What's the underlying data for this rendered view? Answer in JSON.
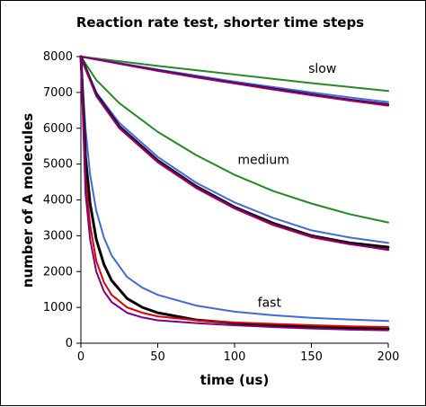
{
  "chart_data": {
    "type": "line",
    "title": "Reaction rate test, shorter time steps",
    "xlabel": "time (us)",
    "ylabel": "number of A molecules",
    "xlim": [
      0,
      200
    ],
    "ylim": [
      0,
      8000
    ],
    "xticks": [
      0,
      50,
      100,
      150,
      200
    ],
    "yticks": [
      0,
      1000,
      2000,
      3000,
      4000,
      5000,
      6000,
      7000,
      8000
    ],
    "grid": false,
    "legend": "none",
    "annotations": [
      {
        "text": "slow",
        "x": 148,
        "y": 7550
      },
      {
        "text": "medium",
        "x": 102,
        "y": 5000
      },
      {
        "text": "fast",
        "x": 115,
        "y": 1020
      }
    ],
    "series": [
      {
        "group": "slow",
        "color": "#228B22",
        "x": [
          0,
          25,
          50,
          75,
          100,
          125,
          150,
          175,
          200
        ],
        "values": [
          8000,
          7870,
          7740,
          7620,
          7500,
          7380,
          7260,
          7150,
          7040
        ]
      },
      {
        "group": "slow",
        "color": "#4169E1",
        "x": [
          0,
          25,
          50,
          75,
          100,
          125,
          150,
          175,
          200
        ],
        "values": [
          8000,
          7820,
          7640,
          7470,
          7300,
          7150,
          7000,
          6860,
          6730
        ]
      },
      {
        "group": "slow",
        "color": "#000000",
        "x": [
          0,
          25,
          50,
          75,
          100,
          125,
          150,
          175,
          200
        ],
        "values": [
          8000,
          7810,
          7620,
          7440,
          7270,
          7110,
          6950,
          6800,
          6670
        ]
      },
      {
        "group": "slow",
        "color": "#E00000",
        "x": [
          0,
          25,
          50,
          75,
          100,
          125,
          150,
          175,
          200
        ],
        "values": [
          8000,
          7800,
          7600,
          7420,
          7250,
          7080,
          6920,
          6770,
          6630
        ]
      },
      {
        "group": "slow",
        "color": "#800080",
        "x": [
          0,
          25,
          50,
          75,
          100,
          125,
          150,
          175,
          200
        ],
        "values": [
          8000,
          7805,
          7610,
          7430,
          7260,
          7095,
          6935,
          6785,
          6650
        ]
      },
      {
        "group": "medium",
        "color": "#228B22",
        "x": [
          0,
          10,
          25,
          50,
          75,
          100,
          125,
          150,
          175,
          200
        ],
        "values": [
          8000,
          7350,
          6700,
          5900,
          5250,
          4700,
          4250,
          3900,
          3600,
          3370
        ]
      },
      {
        "group": "medium",
        "color": "#4169E1",
        "x": [
          0,
          10,
          25,
          50,
          75,
          100,
          125,
          150,
          175,
          200
        ],
        "values": [
          8000,
          7000,
          6150,
          5200,
          4480,
          3930,
          3500,
          3150,
          2950,
          2800
        ]
      },
      {
        "group": "medium",
        "color": "#000000",
        "x": [
          0,
          10,
          25,
          50,
          75,
          100,
          125,
          150,
          175,
          200
        ],
        "values": [
          8000,
          6950,
          6050,
          5100,
          4380,
          3800,
          3350,
          3000,
          2800,
          2680
        ]
      },
      {
        "group": "medium",
        "color": "#E00000",
        "x": [
          0,
          10,
          25,
          50,
          75,
          100,
          125,
          150,
          175,
          200
        ],
        "values": [
          8000,
          6900,
          6000,
          5050,
          4330,
          3760,
          3300,
          2960,
          2760,
          2620
        ]
      },
      {
        "group": "medium",
        "color": "#800080",
        "x": [
          0,
          10,
          25,
          50,
          75,
          100,
          125,
          150,
          175,
          200
        ],
        "values": [
          8000,
          6920,
          6020,
          5070,
          4350,
          3780,
          3320,
          2980,
          2770,
          2600
        ]
      },
      {
        "group": "fast",
        "color": "#4169E1",
        "x": [
          0,
          3,
          6,
          10,
          15,
          20,
          30,
          40,
          50,
          75,
          100,
          125,
          150,
          175,
          200
        ],
        "values": [
          8000,
          6000,
          4700,
          3700,
          2950,
          2450,
          1850,
          1550,
          1350,
          1050,
          880,
          780,
          710,
          660,
          620
        ]
      },
      {
        "group": "fast",
        "color": "#000000",
        "x": [
          0,
          3,
          6,
          10,
          15,
          20,
          30,
          40,
          50,
          75,
          100,
          125,
          150,
          175,
          200
        ],
        "values": [
          8000,
          5200,
          3900,
          2900,
          2200,
          1750,
          1250,
          1000,
          850,
          650,
          560,
          500,
          450,
          420,
          400
        ]
      },
      {
        "group": "fast",
        "color": "#E00000",
        "x": [
          0,
          3,
          6,
          10,
          15,
          20,
          30,
          40,
          50,
          75,
          100,
          125,
          150,
          175,
          200
        ],
        "values": [
          8000,
          4600,
          3300,
          2300,
          1700,
          1350,
          1000,
          850,
          750,
          640,
          580,
          540,
          500,
          470,
          450
        ]
      },
      {
        "group": "fast",
        "color": "#800080",
        "x": [
          0,
          3,
          6,
          10,
          15,
          20,
          30,
          40,
          50,
          75,
          100,
          125,
          150,
          175,
          200
        ],
        "values": [
          8000,
          4200,
          2900,
          2000,
          1450,
          1150,
          850,
          720,
          640,
          560,
          500,
          450,
          410,
          380,
          360
        ]
      }
    ]
  }
}
